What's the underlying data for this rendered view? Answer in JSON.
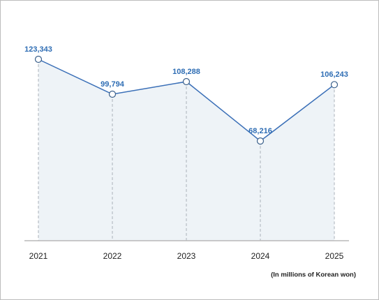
{
  "chart_data": {
    "type": "line",
    "categories": [
      "2021",
      "2022",
      "2023",
      "2024",
      "2025"
    ],
    "values": [
      123343,
      99794,
      108288,
      68216,
      106243
    ],
    "value_labels": [
      "123,343",
      "99,794",
      "108,288",
      "68,216",
      "106,243"
    ],
    "color": "#3a6fb7",
    "area": true,
    "note": "(In millions of Korean won)"
  }
}
